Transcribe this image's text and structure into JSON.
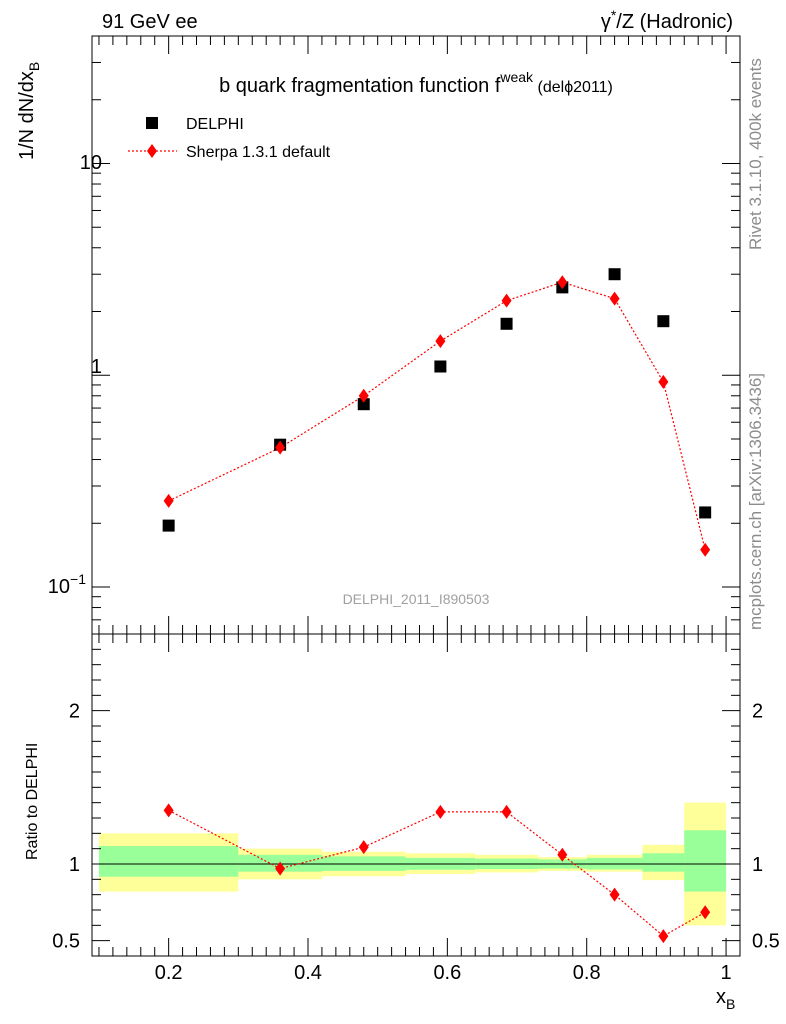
{
  "header": {
    "left": "91 GeV ee",
    "right_prefix": "γ",
    "right_sup": "*",
    "right_suffix": "/Z (Hadronic)"
  },
  "side_labels": {
    "rivet": "Rivet 3.1.10,  400k events",
    "mcplots": "mcplots.cern.ch [arXiv:1306.3436]"
  },
  "chart_data": [
    {
      "type": "scatter",
      "scale": "log",
      "title_main": "b quark fragmentation function f",
      "title_sup": "weak",
      "title_tag": " (delϕ2011)",
      "ylabel": "1/N dN/dx",
      "ylabel_sub": "B",
      "x": [
        0.2,
        0.36,
        0.48,
        0.59,
        0.685,
        0.765,
        0.84,
        0.91,
        0.97
      ],
      "x_edges": [
        0.1,
        0.3,
        0.42,
        0.54,
        0.64,
        0.73,
        0.8,
        0.88,
        0.94,
        1.0
      ],
      "ylim": [
        0.06,
        40
      ],
      "y_ticks": [
        "10",
        "1",
        "10"
      ],
      "y_tick_sup": "−1",
      "watermark": "DELPHI_2011_I890503",
      "series": [
        {
          "name": "DELPHI",
          "color": "#000000",
          "marker": "square",
          "values": [
            0.195,
            0.47,
            0.73,
            1.1,
            1.75,
            2.6,
            3.0,
            1.8,
            0.225
          ]
        },
        {
          "name": "Sherpa 1.3.1 default",
          "color": "#ff0000",
          "marker": "diamond",
          "values": [
            0.255,
            0.455,
            0.8,
            1.45,
            2.25,
            2.75,
            2.3,
            0.93,
            0.15
          ]
        }
      ],
      "legend_position": "top-left"
    },
    {
      "type": "scatter",
      "ylabel": "Ratio to DELPHI",
      "xlabel": "x",
      "xlabel_sub": "B",
      "xlim": [
        0.09,
        1.02
      ],
      "ylim": [
        0.4,
        2.5
      ],
      "x_tick_values": [
        0.2,
        0.4,
        0.6,
        0.8,
        1.0
      ],
      "x_tick_labels": [
        "0.2",
        "0.4",
        "0.6",
        "0.8",
        "1"
      ],
      "y_tick_values": [
        0.5,
        1,
        2
      ],
      "y_tick_labels": [
        "0.5",
        "1",
        "2"
      ],
      "x_edges": [
        0.1,
        0.3,
        0.42,
        0.54,
        0.64,
        0.73,
        0.8,
        0.88,
        0.94,
        1.0
      ],
      "band_inner": [
        [
          0.917,
          1.117
        ],
        [
          0.95,
          1.06
        ],
        [
          0.955,
          1.05
        ],
        [
          0.962,
          1.04
        ],
        [
          0.967,
          1.035
        ],
        [
          0.97,
          1.03
        ],
        [
          0.965,
          1.04
        ],
        [
          0.95,
          1.07
        ],
        [
          0.82,
          1.22
        ]
      ],
      "band_outer": [
        [
          0.82,
          1.2
        ],
        [
          0.9,
          1.1
        ],
        [
          0.92,
          1.08
        ],
        [
          0.935,
          1.07
        ],
        [
          0.945,
          1.06
        ],
        [
          0.955,
          1.045
        ],
        [
          0.95,
          1.06
        ],
        [
          0.895,
          1.125
        ],
        [
          0.6,
          1.4
        ]
      ],
      "band_inner_color": "#99ff99",
      "band_outer_color": "#ffff99",
      "series": [
        {
          "name": "Sherpa 1.3.1 default",
          "color": "#ff0000",
          "marker": "diamond",
          "values": [
            1.35,
            0.97,
            1.11,
            1.34,
            1.34,
            1.06,
            0.8,
            0.53,
            0.685
          ]
        }
      ]
    }
  ]
}
